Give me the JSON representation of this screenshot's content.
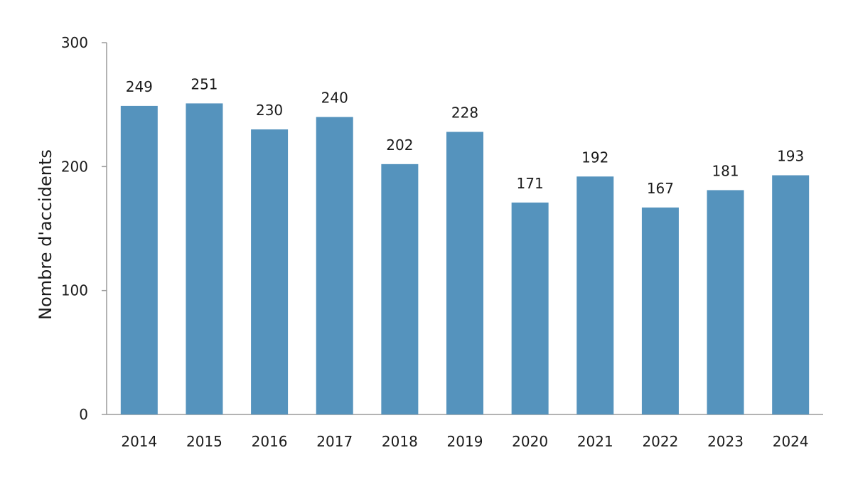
{
  "chart_data": {
    "type": "bar",
    "categories": [
      "2014",
      "2015",
      "2016",
      "2017",
      "2018",
      "2019",
      "2020",
      "2021",
      "2022",
      "2023",
      "2024"
    ],
    "values": [
      249,
      251,
      230,
      240,
      202,
      228,
      171,
      192,
      167,
      181,
      193
    ],
    "title": "",
    "xlabel": "",
    "ylabel": "Nombre d'accidents",
    "ylim": [
      0,
      300
    ],
    "yticks": [
      "0",
      "100",
      "200",
      "300"
    ],
    "data_labels": true,
    "grid": false,
    "legend": "none",
    "bar_color": "#5593bd",
    "axis_color": "#9a9a9a"
  }
}
